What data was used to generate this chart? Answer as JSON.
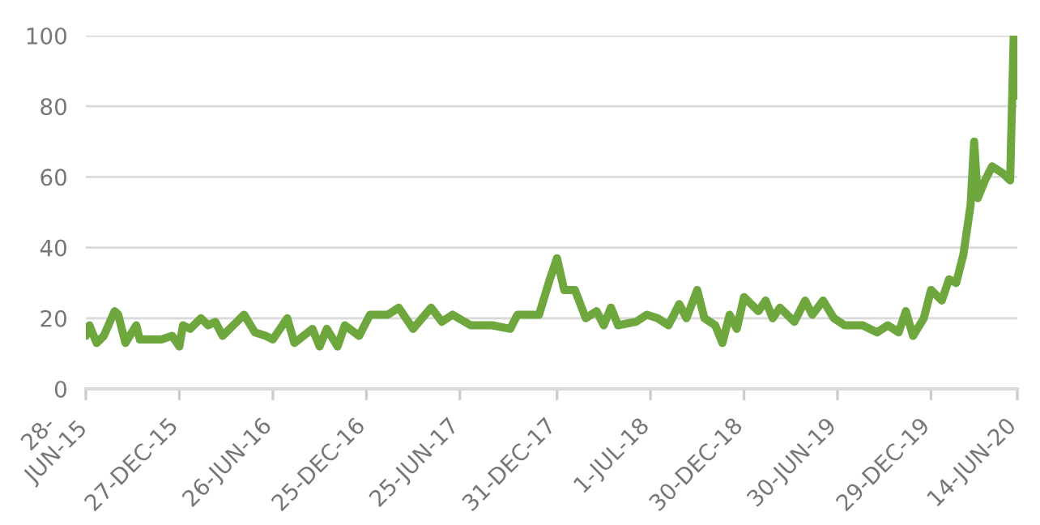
{
  "chart_data": {
    "type": "line",
    "grid": "y",
    "marker": "none",
    "line_style": "solid",
    "xlim": [
      "2015-06-28",
      "2020-06-14"
    ],
    "ylim": [
      0,
      100
    ],
    "yticks": [
      0,
      20,
      40,
      60,
      80,
      100
    ],
    "xticks": [
      {
        "value": "2015-06-28",
        "label": "28-\nJUN-15"
      },
      {
        "value": "2015-12-27",
        "label": "27-DEC-15"
      },
      {
        "value": "2016-06-26",
        "label": "26-JUN-16"
      },
      {
        "value": "2016-12-25",
        "label": "25-DEC-16"
      },
      {
        "value": "2017-06-25",
        "label": "25-JUN-17"
      },
      {
        "value": "2017-12-31",
        "label": "31-DEC-17"
      },
      {
        "value": "2018-07-01",
        "label": "1-JUL-18"
      },
      {
        "value": "2018-12-30",
        "label": "30-DEC-18"
      },
      {
        "value": "2019-06-30",
        "label": "30-JUN-19"
      },
      {
        "value": "2019-12-29",
        "label": "29-DEC-19"
      },
      {
        "value": "2020-06-14",
        "label": "14-JUN-20"
      }
    ],
    "x": [
      "2015-06-28",
      "2015-07-05",
      "2015-07-19",
      "2015-08-02",
      "2015-08-23",
      "2015-08-30",
      "2015-09-13",
      "2015-10-04",
      "2015-10-11",
      "2015-11-22",
      "2015-12-13",
      "2015-12-27",
      "2016-01-03",
      "2016-01-17",
      "2016-02-07",
      "2016-02-21",
      "2016-03-06",
      "2016-03-20",
      "2016-04-10",
      "2016-05-01",
      "2016-05-22",
      "2016-06-12",
      "2016-06-26",
      "2016-07-24",
      "2016-08-07",
      "2016-09-11",
      "2016-09-25",
      "2016-10-09",
      "2016-10-30",
      "2016-11-13",
      "2016-12-11",
      "2017-01-01",
      "2017-02-05",
      "2017-02-26",
      "2017-03-26",
      "2017-04-30",
      "2017-05-21",
      "2017-06-11",
      "2017-07-16",
      "2017-08-27",
      "2017-10-01",
      "2017-10-15",
      "2017-11-05",
      "2017-11-26",
      "2017-12-17",
      "2017-12-31",
      "2018-01-14",
      "2018-02-04",
      "2018-02-25",
      "2018-03-18",
      "2018-04-01",
      "2018-04-15",
      "2018-04-29",
      "2018-06-03",
      "2018-06-24",
      "2018-07-15",
      "2018-08-05",
      "2018-08-26",
      "2018-09-09",
      "2018-09-30",
      "2018-10-14",
      "2018-11-04",
      "2018-11-18",
      "2018-12-02",
      "2018-12-16",
      "2018-12-30",
      "2019-01-27",
      "2019-02-10",
      "2019-02-24",
      "2019-03-10",
      "2019-04-07",
      "2019-04-28",
      "2019-05-12",
      "2019-06-02",
      "2019-06-23",
      "2019-07-14",
      "2019-08-18",
      "2019-09-15",
      "2019-10-06",
      "2019-10-27",
      "2019-11-10",
      "2019-11-24",
      "2019-12-15",
      "2019-12-29",
      "2020-01-19",
      "2020-02-02",
      "2020-02-16",
      "2020-03-01",
      "2020-03-15",
      "2020-03-22",
      "2020-03-29",
      "2020-04-12",
      "2020-04-26",
      "2020-05-17",
      "2020-05-31",
      "2020-06-07",
      "2020-06-14"
    ],
    "series": [
      {
        "color": "#6fa73f",
        "values": [
          15,
          18,
          13,
          15,
          22,
          21,
          13,
          18,
          14,
          14,
          15,
          12,
          18,
          17,
          20,
          18,
          19,
          15,
          18,
          21,
          16,
          15,
          14,
          20,
          13,
          17,
          12,
          17,
          12,
          18,
          15,
          21,
          21,
          23,
          17,
          23,
          19,
          21,
          18,
          18,
          17,
          21,
          21,
          21,
          31,
          37,
          28,
          28,
          20,
          22,
          18,
          23,
          18,
          19,
          21,
          20,
          18,
          24,
          20,
          28,
          20,
          18,
          13,
          21,
          17,
          26,
          22,
          25,
          20,
          23,
          19,
          25,
          21,
          25,
          20,
          18,
          18,
          16,
          18,
          16,
          22,
          15,
          20,
          28,
          25,
          31,
          30,
          38,
          52,
          70,
          54,
          59,
          63,
          61,
          59,
          100,
          83
        ]
      }
    ]
  }
}
